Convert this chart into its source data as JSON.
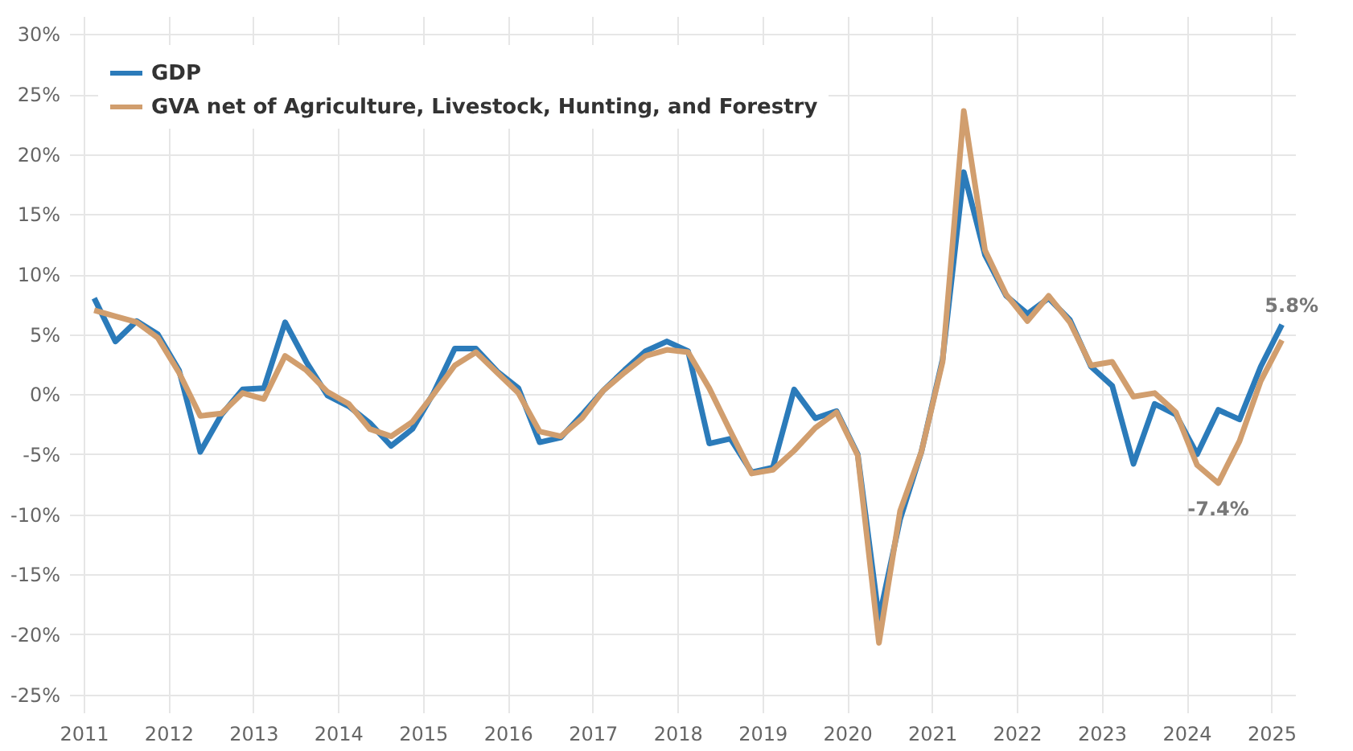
{
  "chart_data": {
    "type": "line",
    "x": [
      2011.125,
      2011.375,
      2011.625,
      2011.875,
      2012.125,
      2012.375,
      2012.625,
      2012.875,
      2013.125,
      2013.375,
      2013.625,
      2013.875,
      2014.125,
      2014.375,
      2014.625,
      2014.875,
      2015.125,
      2015.375,
      2015.625,
      2015.875,
      2016.125,
      2016.375,
      2016.625,
      2016.875,
      2017.125,
      2017.375,
      2017.625,
      2017.875,
      2018.125,
      2018.375,
      2018.625,
      2018.875,
      2019.125,
      2019.375,
      2019.625,
      2019.875,
      2020.125,
      2020.375,
      2020.625,
      2020.875,
      2021.125,
      2021.375,
      2021.625,
      2021.875,
      2022.125,
      2022.375,
      2022.625,
      2022.875,
      2023.125,
      2023.375,
      2023.625,
      2023.875,
      2024.125,
      2024.375,
      2024.625,
      2024.875,
      2025.125
    ],
    "series": [
      {
        "name": "GDP",
        "color": "#2b7bba",
        "values": [
          8.0,
          4.4,
          6.1,
          5.0,
          2.0,
          -4.8,
          -1.7,
          0.4,
          0.5,
          6.0,
          2.7,
          -0.1,
          -1.0,
          -2.4,
          -4.3,
          -2.9,
          0.1,
          3.8,
          3.8,
          1.9,
          0.5,
          -4.0,
          -3.6,
          -1.7,
          0.3,
          2.0,
          3.6,
          4.4,
          3.6,
          -4.1,
          -3.7,
          -6.5,
          -6.1,
          0.4,
          -2.0,
          -1.4,
          -5.0,
          -18.7,
          -10.4,
          -4.8,
          2.9,
          18.5,
          11.6,
          8.2,
          6.7,
          8.0,
          6.2,
          2.3,
          0.7,
          -5.8,
          -0.8,
          -1.7,
          -5.0,
          -1.3,
          -2.1,
          2.3,
          5.8
        ]
      },
      {
        "name": "GVA net of Agriculture, Livestock, Hunting, and Forestry",
        "color": "#d19e6e",
        "values": [
          7.0,
          6.5,
          6.0,
          4.7,
          1.8,
          -1.8,
          -1.6,
          0.1,
          -0.4,
          3.2,
          2.0,
          0.2,
          -0.8,
          -2.9,
          -3.5,
          -2.3,
          0.0,
          2.4,
          3.5,
          1.8,
          0.1,
          -3.1,
          -3.5,
          -2.0,
          0.3,
          1.8,
          3.2,
          3.7,
          3.5,
          0.5,
          -3.1,
          -6.6,
          -6.3,
          -4.7,
          -2.8,
          -1.5,
          -5.1,
          -20.7,
          -9.7,
          -4.8,
          2.7,
          23.6,
          12.0,
          8.3,
          6.1,
          8.2,
          6.0,
          2.4,
          2.7,
          -0.2,
          0.1,
          -1.5,
          -5.9,
          -7.4,
          -3.9,
          1.1,
          4.5
        ]
      }
    ],
    "xlim": [
      2010.83,
      2025.28
    ],
    "xticks": [
      2011,
      2012,
      2013,
      2014,
      2015,
      2016,
      2017,
      2018,
      2019,
      2020,
      2021,
      2022,
      2023,
      2024,
      2025
    ],
    "ylim": [
      -26.5,
      31.5
    ],
    "yticks": [
      {
        "value": -25,
        "label": "-25%"
      },
      {
        "value": -20,
        "label": "-20%"
      },
      {
        "value": -15,
        "label": "-15%"
      },
      {
        "value": -10,
        "label": "-10%"
      },
      {
        "value": -5,
        "label": "-5%"
      },
      {
        "value": 0,
        "label": "0%"
      },
      {
        "value": 5,
        "label": "5%"
      },
      {
        "value": 10,
        "label": "10%"
      },
      {
        "value": 15,
        "label": "15%"
      },
      {
        "value": 20,
        "label": "20%"
      },
      {
        "value": 25,
        "label": "25%"
      },
      {
        "value": 30,
        "label": "30%"
      }
    ],
    "annotations": [
      {
        "text": "5.8%",
        "x": 2025.125,
        "y": 5.8
      },
      {
        "text": "-7.4%",
        "x": 2024.375,
        "y": -7.4
      }
    ],
    "grid": true,
    "legend": "top left",
    "marker": "none",
    "line_style": "solid"
  }
}
